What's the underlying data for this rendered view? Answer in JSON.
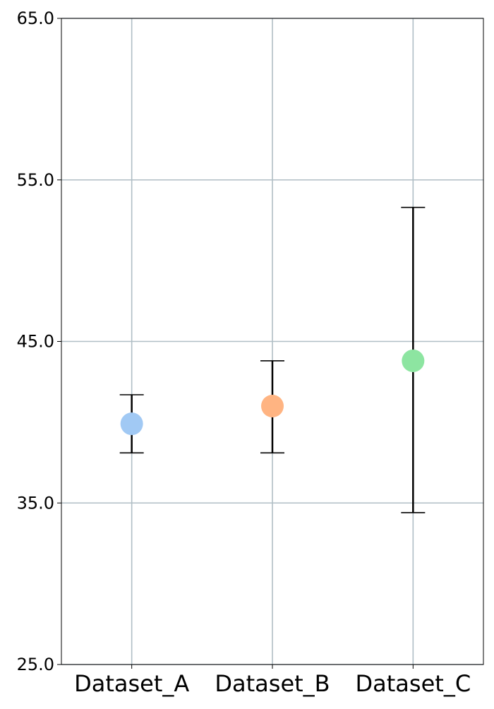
{
  "chart_data": {
    "type": "scatter",
    "title": "",
    "xlabel": "",
    "ylabel": "",
    "categories": [
      "Dataset_A",
      "Dataset_B",
      "Dataset_C"
    ],
    "points": [
      {
        "category": "Dataset_A",
        "value": 39.9,
        "err_low": 38.1,
        "err_high": 41.7,
        "color": "#a1c9f4"
      },
      {
        "category": "Dataset_B",
        "value": 41.0,
        "err_low": 38.1,
        "err_high": 43.8,
        "color": "#ffb482"
      },
      {
        "category": "Dataset_C",
        "value": 43.8,
        "err_low": 34.4,
        "err_high": 53.3,
        "color": "#8de5a1"
      }
    ],
    "ylim": [
      25.0,
      65.0
    ],
    "yticks": [
      "25.0",
      "35.0",
      "45.0",
      "55.0",
      "65.0"
    ],
    "grid": true,
    "grid_color": "#b0bec5",
    "errorbar_color": "#000000"
  }
}
